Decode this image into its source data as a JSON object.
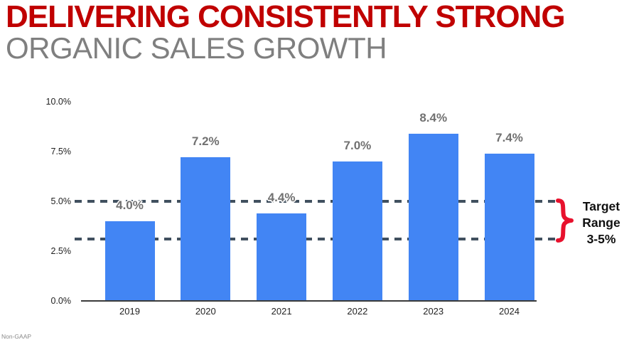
{
  "header": {
    "title_line1": "DELIVERING CONSISTENTLY STRONG",
    "title_line2": "ORGANIC SALES GROWTH",
    "title_color": "#C00000",
    "subtitle_color": "#7F7F7F"
  },
  "chart_data": {
    "type": "bar",
    "title": "",
    "xlabel": "",
    "ylabel": "",
    "categories": [
      "2019",
      "2020",
      "2021",
      "2022",
      "2023",
      "2024"
    ],
    "values": [
      4.0,
      7.2,
      4.4,
      7.0,
      8.4,
      7.4
    ],
    "value_labels": [
      "4.0%",
      "7.2%",
      "4.4%",
      "7.0%",
      "8.4%",
      "7.4%"
    ],
    "y_ticks": [
      {
        "label": "10.0%",
        "value": 10.0
      },
      {
        "label": "7.5%",
        "value": 7.5
      },
      {
        "label": "5.0%",
        "value": 5.0
      },
      {
        "label": "2.5%",
        "value": 2.5
      },
      {
        "label": "0.0%",
        "value": 0.0
      }
    ],
    "ylim": [
      0,
      10
    ],
    "grid": false,
    "legend": "none",
    "bar_color": "#4285F4",
    "reference_lines": [
      {
        "value": 5.0,
        "style": "dashed",
        "color": "#41505F"
      },
      {
        "value": 3.1,
        "style": "dashed",
        "color": "#41505F"
      }
    ]
  },
  "target_annotation": {
    "lines": [
      "Target",
      "Range",
      "3-5%"
    ],
    "brace_color": "#E8112D"
  },
  "footnote": "Non-GAAP"
}
